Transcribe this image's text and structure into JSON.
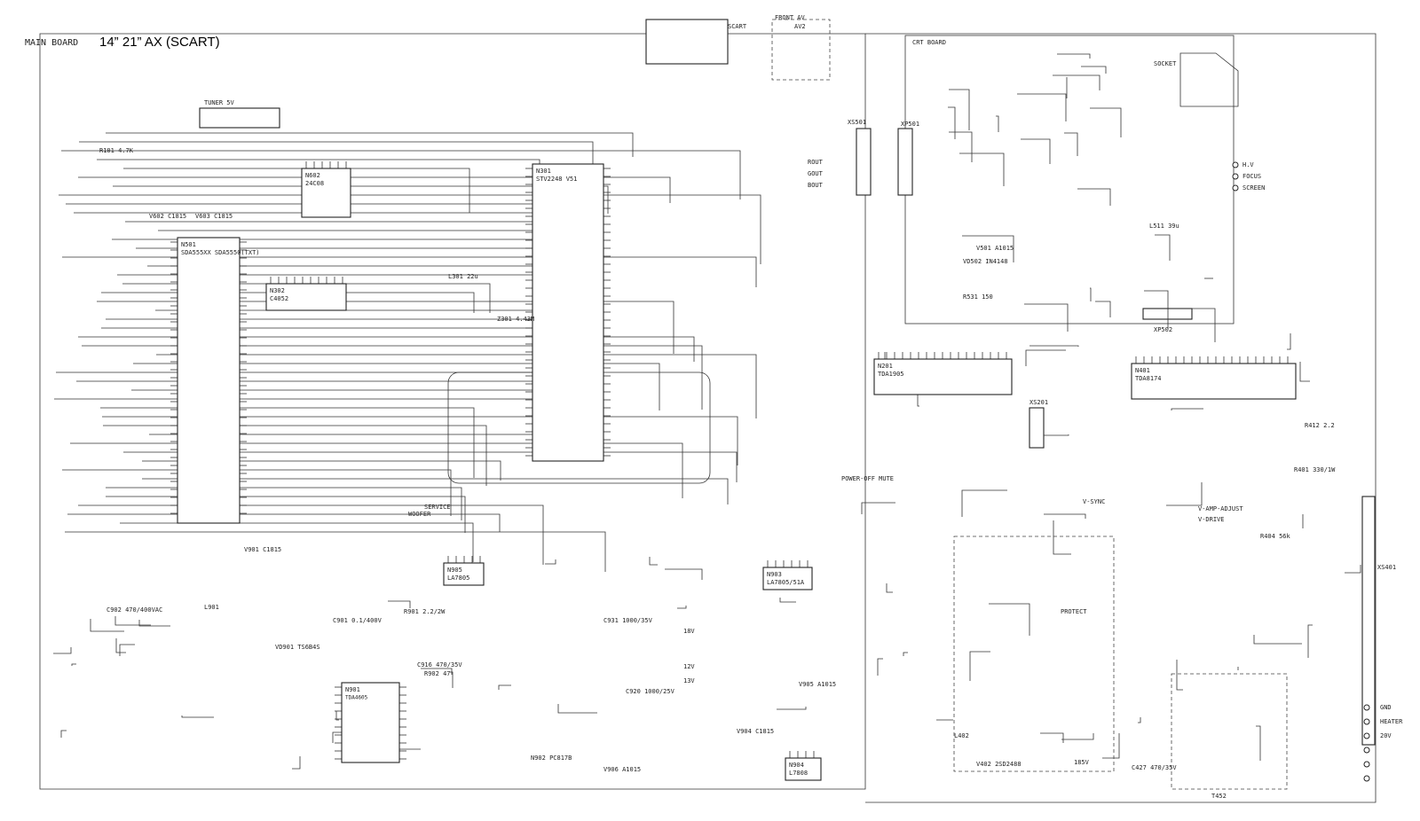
{
  "header": {
    "board": "MAIN BOARD",
    "title": "14” 21” AX (SCART)"
  },
  "crt_board": "CRT BOARD",
  "ics": [
    {
      "ref": "N501",
      "part": "SDA555XX SDA5550(TXT)"
    },
    {
      "ref": "N301",
      "part": "STV2248 V51"
    },
    {
      "ref": "N201",
      "part": "TDA1905"
    },
    {
      "ref": "N401",
      "part": "TDA8174"
    },
    {
      "ref": "N901",
      "part": "TDA4605"
    },
    {
      "ref": "N602",
      "part": "24C08"
    },
    {
      "ref": "N302",
      "part": "C4052"
    },
    {
      "ref": "N903",
      "part": "LA7805/51A"
    },
    {
      "ref": "N904",
      "part": "L7808"
    },
    {
      "ref": "N905",
      "part": "LA7805"
    }
  ],
  "connectors": [
    "TUNER 5V",
    "SCART",
    "FRONT AV",
    "AV2",
    "XP501",
    "XS501",
    "XP502",
    "SOCKET",
    "XS401",
    "XS201"
  ],
  "signals": [
    "H.V",
    "FOCUS",
    "SCREEN",
    "GND",
    "HEATER",
    "20V",
    "V-SYNC",
    "V-DRIVE",
    "V-AMP-ADJUST",
    "PROTECT",
    "ROUT",
    "GOUT",
    "BOUT",
    "POWER-OFF MUTE",
    "SERVICE",
    "WOOFER",
    "12V",
    "13V",
    "18V",
    "185V"
  ],
  "components": [
    "R101 4.7K",
    "V602 C1815",
    "V603 C1815",
    "Z301 4.43M",
    "L301 22u",
    "C902 470/400VAC",
    "L901",
    "VD901 TS6B4S",
    "R902 47",
    "V402 2SD2488",
    "R412 2.2",
    "R404 56k",
    "R401 330/1W",
    "C427 470/35V",
    "L402",
    "V905 A1015",
    "V904 C1815",
    "V906 A1015",
    "N902 PC817B",
    "C916 470/35V",
    "C920 1000/25V",
    "C931 1000/35V",
    "C901 0.1/400V",
    "R901 2.2/2W",
    "T452",
    "V901 C1815",
    "VD502 IN4148",
    "R531 150",
    "L511 39u",
    "V501 A1015"
  ]
}
